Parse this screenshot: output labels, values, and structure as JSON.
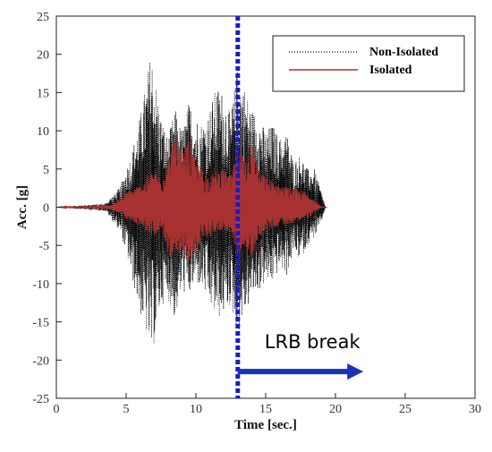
{
  "chart_data": {
    "type": "line",
    "xlabel": "Time [sec.]",
    "ylabel": "Acc. [g]",
    "xlim": [
      0,
      30
    ],
    "ylim": [
      -25,
      25
    ],
    "x_ticks": [
      0,
      5,
      10,
      15,
      20,
      25,
      30
    ],
    "y_ticks": [
      25,
      20,
      15,
      10,
      5,
      0,
      -5,
      -10,
      -15,
      -20,
      -25
    ],
    "grid": false,
    "legend_position": "top-right",
    "series": [
      {
        "name": "Non-Isolated",
        "style": "dotted",
        "color": "#000000",
        "x": [
          0,
          3.5,
          4.5,
          5.0,
          5.5,
          6.0,
          6.5,
          6.8,
          7.0,
          7.5,
          8.0,
          8.5,
          9.0,
          9.5,
          10.0,
          10.5,
          11.0,
          11.5,
          12.0,
          12.5,
          13.0,
          13.3,
          14.0,
          14.5,
          15.0,
          15.5,
          16.0,
          16.5,
          17.0,
          17.5,
          18.0,
          18.5,
          19.0,
          19.3
        ],
        "upper": [
          0,
          0.5,
          2.5,
          5,
          8,
          12,
          17,
          21,
          18,
          12,
          9,
          13,
          10,
          14,
          12,
          11,
          13,
          16,
          15,
          12,
          19,
          17,
          13,
          12,
          10,
          11,
          9,
          10,
          6,
          7,
          5,
          5,
          2,
          0
        ],
        "lower": [
          0,
          -0.5,
          -3,
          -6,
          -10,
          -14,
          -17,
          -20,
          -18,
          -13,
          -12,
          -15,
          -11,
          -12,
          -10,
          -11,
          -13,
          -15,
          -14,
          -13,
          -17,
          -15,
          -12,
          -11,
          -10,
          -10,
          -8,
          -9,
          -6,
          -7,
          -5,
          -4,
          -2,
          0
        ]
      },
      {
        "name": "Isolated",
        "style": "solid",
        "color": "#a83232",
        "x": [
          0,
          4.0,
          5.0,
          6.0,
          7.0,
          7.5,
          8.0,
          8.5,
          9.0,
          9.5,
          10.0,
          10.5,
          11.0,
          11.5,
          12.0,
          12.5,
          13.0,
          13.5,
          14.0,
          14.5,
          15.0,
          16.0,
          17.0,
          18.0,
          19.0
        ],
        "upper": [
          0,
          0.3,
          2,
          3,
          5,
          4,
          6,
          10,
          7,
          9,
          6,
          5,
          4,
          5,
          5,
          4,
          8,
          7,
          9,
          5,
          4,
          3,
          2.5,
          2,
          0
        ],
        "lower": [
          0,
          -0.3,
          -1.5,
          -2.5,
          -4,
          -3,
          -6,
          -8,
          -6,
          -8,
          -6,
          -4,
          -4,
          -3,
          -3,
          -4,
          -6,
          -5,
          -7,
          -4,
          -3,
          -2.5,
          -2,
          -1.5,
          0
        ]
      }
    ],
    "vertical_marker": {
      "x": 13,
      "color": "#1a1acc",
      "style": "dashed"
    },
    "annotation": {
      "text": "LRB break",
      "arrow_from_x": 13,
      "arrow_to_x": 22,
      "arrow_y": -21.5,
      "color": "#1a33b8"
    }
  }
}
